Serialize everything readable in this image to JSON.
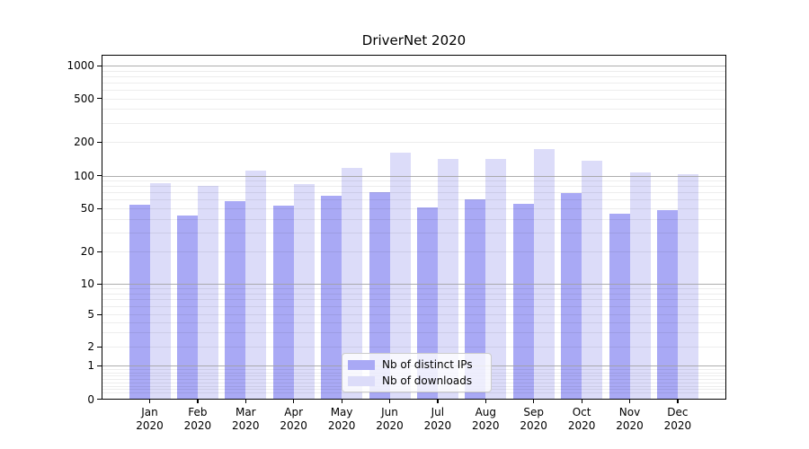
{
  "title": "DriverNet 2020",
  "chart_data": {
    "type": "bar",
    "title": "DriverNet 2020",
    "yscale": "symlog",
    "ylim": [
      0,
      1250
    ],
    "y_ticks": [
      0,
      1,
      2,
      5,
      10,
      20,
      50,
      100,
      200,
      500,
      1000
    ],
    "grid": "both",
    "legend_position": "lower center",
    "x_year": "2020",
    "categories": [
      "Jan",
      "Feb",
      "Mar",
      "Apr",
      "May",
      "Jun",
      "Jul",
      "Aug",
      "Sep",
      "Oct",
      "Nov",
      "Dec"
    ],
    "series": [
      {
        "name": "Nb of distinct IPs",
        "color": "#a9a9f5",
        "values": [
          54,
          43,
          58,
          53,
          65,
          70,
          51,
          60,
          55,
          69,
          45,
          48
        ]
      },
      {
        "name": "Nb of downloads",
        "color": "#dcdcf9",
        "values": [
          85,
          80,
          111,
          84,
          116,
          160,
          142,
          142,
          171,
          136,
          107,
          102
        ]
      }
    ]
  },
  "colors": {
    "grid_major": "#ababab",
    "grid_minor": "#ededed",
    "axis": "#000000",
    "legend_border": "#cccccc",
    "background": "#ffffff"
  }
}
